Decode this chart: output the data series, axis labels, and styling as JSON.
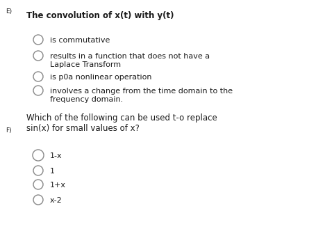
{
  "background_color": "#ffffff",
  "label_E": "E)",
  "label_F": "F)",
  "question_E": "The convolution of x(t) with y(t)",
  "options_E": [
    "is commutative",
    "results in a function that does not have a\nLaplace Transform",
    "is p0a nonlinear operation",
    "involves a change from the time domain to the\nfrequency domain."
  ],
  "question_F": "Which of the following can be used t-o replace\nsin(x) for small values of x?",
  "options_F": [
    "1-x",
    "1",
    "1+x",
    "x-2"
  ],
  "text_color": "#1a1a1a",
  "circle_color": "#888888",
  "font_size_label": 6.5,
  "font_size_question": 8.5,
  "font_size_option": 8.0
}
